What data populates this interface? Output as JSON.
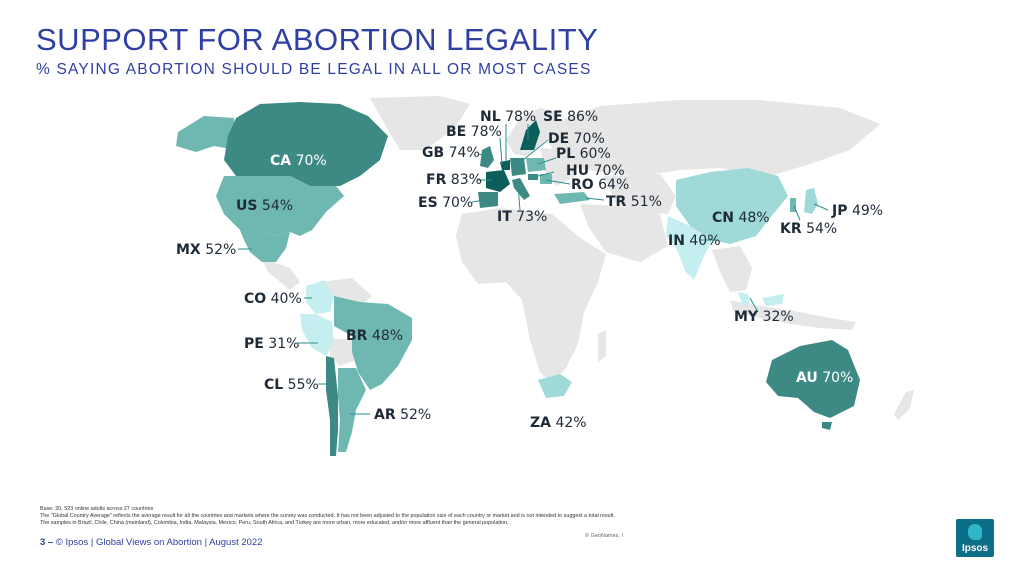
{
  "header": {
    "title": "SUPPORT FOR ABORTION LEGALITY",
    "subtitle": "% SAYING ABORTION SHOULD BE LEGAL IN ALL OR MOST CASES"
  },
  "colors": {
    "title": "#2f3fa3",
    "base_land": "#e6e6e6",
    "shade_dark": "#0b5e5a",
    "shade_mid_dark": "#3d8a85",
    "shade_mid": "#6fb8b2",
    "shade_light": "#9fd9d8",
    "shade_lightest": "#c4eef0"
  },
  "countries": [
    {
      "code": "CA",
      "value": "70%"
    },
    {
      "code": "US",
      "value": "54%"
    },
    {
      "code": "MX",
      "value": "52%"
    },
    {
      "code": "CO",
      "value": "40%"
    },
    {
      "code": "PE",
      "value": "31%"
    },
    {
      "code": "BR",
      "value": "48%"
    },
    {
      "code": "CL",
      "value": "55%"
    },
    {
      "code": "AR",
      "value": "52%"
    },
    {
      "code": "NL",
      "value": "78%"
    },
    {
      "code": "SE",
      "value": "86%"
    },
    {
      "code": "BE",
      "value": "78%"
    },
    {
      "code": "DE",
      "value": "70%"
    },
    {
      "code": "GB",
      "value": "74%"
    },
    {
      "code": "PL",
      "value": "60%"
    },
    {
      "code": "HU",
      "value": "70%"
    },
    {
      "code": "FR",
      "value": "83%"
    },
    {
      "code": "RO",
      "value": "64%"
    },
    {
      "code": "ES",
      "value": "70%"
    },
    {
      "code": "TR",
      "value": "51%"
    },
    {
      "code": "IT",
      "value": "73%"
    },
    {
      "code": "ZA",
      "value": "42%"
    },
    {
      "code": "CN",
      "value": "48%"
    },
    {
      "code": "IN",
      "value": "40%"
    },
    {
      "code": "JP",
      "value": "49%"
    },
    {
      "code": "KR",
      "value": "54%"
    },
    {
      "code": "MY",
      "value": "32%"
    },
    {
      "code": "AU",
      "value": "70%"
    }
  ],
  "footnotes": [
    "Base: 20, 523 online adults across 27 countries",
    "The \"Global Country Average\" reflects the average result for all the countries and markets where the survey was conducted. It has not been adjusted to the population size of each country or market and is not intended to suggest a total result.",
    "The samples in Brazil, Chile, China (mainland), Colombia, India, Malaysia, Mexico, Peru, South Africa, and Turkey are more urban, more educated, and/or more affluent than the general population."
  ],
  "map_credit": "© GeoNames, I",
  "footer": {
    "page": "3 –",
    "text": "© Ipsos | Global Views on Abortion | August 2022"
  },
  "logo_text": "Ipsos"
}
